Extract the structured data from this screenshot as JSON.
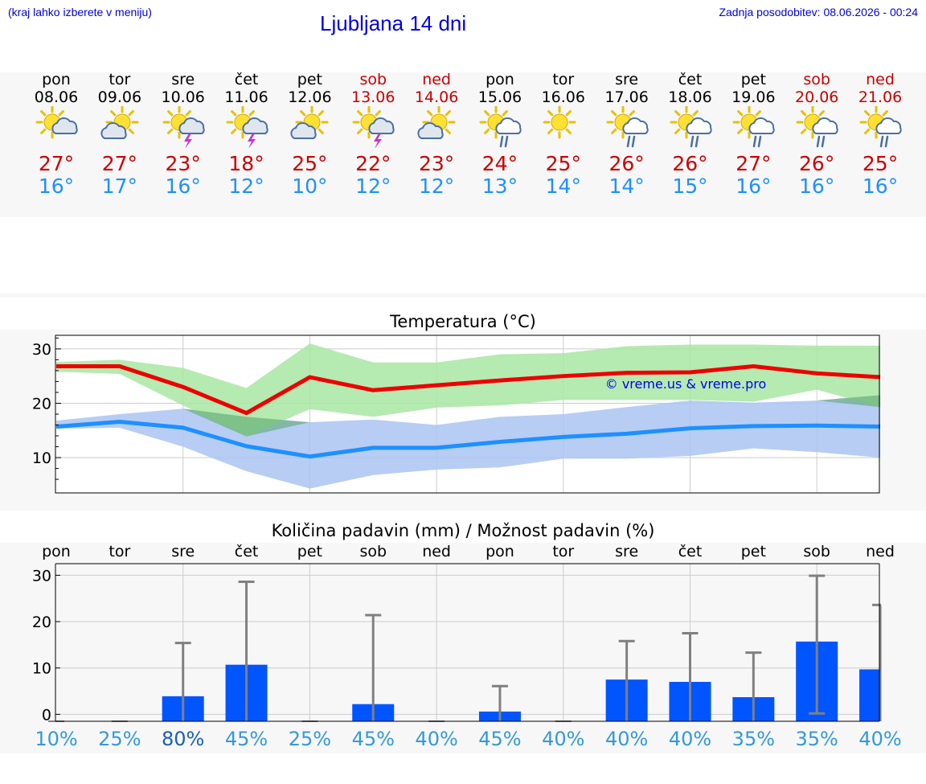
{
  "header": {
    "hint": "(kraj lahko izberete v meniju)",
    "title": "Ljubljana 14 dni",
    "updated": "Zadnja posodobitev: 08.06.2026 - 00:24"
  },
  "days": [
    {
      "name": "pon",
      "date": "08.06",
      "weekend": false,
      "icon": "sun-cloud-icon",
      "max": "27°",
      "min": "16°"
    },
    {
      "name": "tor",
      "date": "09.06",
      "weekend": false,
      "icon": "cloud-sun-icon",
      "max": "27°",
      "min": "17°"
    },
    {
      "name": "sre",
      "date": "10.06",
      "weekend": false,
      "icon": "sun-thunder-icon",
      "max": "23°",
      "min": "16°"
    },
    {
      "name": "čet",
      "date": "11.06",
      "weekend": false,
      "icon": "sun-thunder-icon",
      "max": "18°",
      "min": "12°"
    },
    {
      "name": "pet",
      "date": "12.06",
      "weekend": false,
      "icon": "cloud-sun-icon",
      "max": "25°",
      "min": "10°"
    },
    {
      "name": "sob",
      "date": "13.06",
      "weekend": true,
      "icon": "sun-thunder-icon",
      "max": "22°",
      "min": "12°"
    },
    {
      "name": "ned",
      "date": "14.06",
      "weekend": true,
      "icon": "cloud-sun-icon",
      "max": "23°",
      "min": "12°"
    },
    {
      "name": "pon",
      "date": "15.06",
      "weekend": false,
      "icon": "sun-rain-icon",
      "max": "24°",
      "min": "13°"
    },
    {
      "name": "tor",
      "date": "16.06",
      "weekend": false,
      "icon": "sun-icon",
      "max": "25°",
      "min": "14°"
    },
    {
      "name": "sre",
      "date": "17.06",
      "weekend": false,
      "icon": "sun-rain-icon",
      "max": "26°",
      "min": "14°"
    },
    {
      "name": "čet",
      "date": "18.06",
      "weekend": false,
      "icon": "sun-rain-icon",
      "max": "26°",
      "min": "15°"
    },
    {
      "name": "pet",
      "date": "19.06",
      "weekend": false,
      "icon": "sun-rain-icon",
      "max": "27°",
      "min": "16°"
    },
    {
      "name": "sob",
      "date": "20.06",
      "weekend": true,
      "icon": "sun-rain-icon",
      "max": "26°",
      "min": "16°"
    },
    {
      "name": "ned",
      "date": "21.06",
      "weekend": true,
      "icon": "sun-rain-icon",
      "max": "25°",
      "min": "16°"
    }
  ],
  "colors": {
    "max_line": "#ee0000",
    "min_line": "#1e90ff",
    "max_band": "#a8e6a3",
    "min_band": "#aac4f2",
    "precip_bar": "#0055ff",
    "error_bar": "#808080",
    "weekend_text": "#cc0000",
    "prob_text": "#3399dd",
    "prob_text_high": "#1a5fb4"
  },
  "chart_data": [
    {
      "type": "line",
      "title": "Temperatura (°C)",
      "watermark": "© vreme.us & vreme.pro",
      "ylim": [
        3.5,
        32.5
      ],
      "yticks": [
        10,
        20,
        30
      ],
      "grid": true,
      "series": [
        {
          "max_temp": [
            26.8,
            26.8,
            23.0,
            18.2,
            24.8,
            22.4,
            23.3,
            24.2,
            25.0,
            25.6,
            25.7,
            26.8,
            25.5,
            24.8
          ],
          "max_upper": [
            27.6,
            28.0,
            26.5,
            22.8,
            31.0,
            27.5,
            27.5,
            29.0,
            29.2,
            30.5,
            30.8,
            30.8,
            30.6,
            30.6
          ],
          "max_lower": [
            25.8,
            25.4,
            19.6,
            13.9,
            18.9,
            17.5,
            19.2,
            19.6,
            20.6,
            20.6,
            20.6,
            20.3,
            22.5,
            19.3
          ]
        },
        {
          "min_temp": [
            15.7,
            16.6,
            15.5,
            12.1,
            10.2,
            11.8,
            11.8,
            12.9,
            13.8,
            14.4,
            15.4,
            15.8,
            15.9,
            15.7
          ],
          "min_upper": [
            16.8,
            18.0,
            19.0,
            17.5,
            16.5,
            17.0,
            16.0,
            17.5,
            18.0,
            19.3,
            20.5,
            20.1,
            20.5,
            21.5
          ],
          "min_lower": [
            15.3,
            15.5,
            12.0,
            7.5,
            4.3,
            6.8,
            7.8,
            8.2,
            9.8,
            9.8,
            10.3,
            11.7,
            11.0,
            10.0
          ]
        }
      ]
    },
    {
      "type": "bar",
      "title": "Količina padavin (mm) / Možnost padavin (%)",
      "ylim": [
        -1.5,
        32.5
      ],
      "yticks": [
        0,
        10,
        20,
        30
      ],
      "grid": true,
      "day_labels": [
        "pon",
        "tor",
        "sre",
        "čet",
        "pet",
        "sob",
        "ned",
        "pon",
        "tor",
        "sre",
        "čet",
        "pet",
        "sob",
        "ned"
      ],
      "amount_mm": [
        0,
        0,
        3.9,
        10.7,
        0,
        2.2,
        0,
        0.6,
        0,
        7.5,
        7.0,
        3.7,
        15.7,
        9.7
      ],
      "error_high": [
        0,
        0,
        15.4,
        28.6,
        0,
        21.4,
        0,
        6.1,
        0,
        15.8,
        17.5,
        13.3,
        29.9,
        23.6
      ],
      "error_low": [
        0,
        0,
        0,
        0,
        0,
        0,
        0,
        0,
        0,
        0,
        0,
        0,
        0.2,
        0
      ],
      "probability": [
        "10%",
        "25%",
        "80%",
        "45%",
        "25%",
        "45%",
        "40%",
        "45%",
        "40%",
        "40%",
        "40%",
        "35%",
        "35%",
        "40%"
      ]
    }
  ]
}
